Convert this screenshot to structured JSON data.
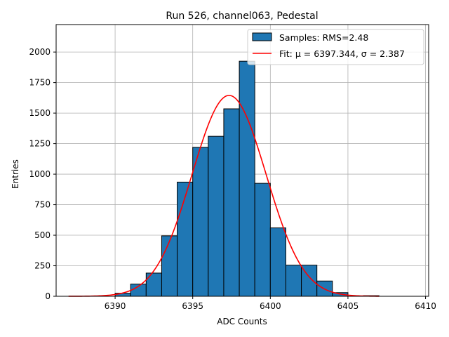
{
  "chart_data": {
    "type": "bar",
    "title": "Run 526, channel063, Pedestal",
    "xlabel": "ADC Counts",
    "ylabel": "Entries",
    "xlim": [
      6386.2,
      6410.2
    ],
    "ylim": [
      0,
      2225
    ],
    "xticks": [
      6390,
      6395,
      6400,
      6405,
      6410
    ],
    "yticks": [
      0,
      250,
      500,
      750,
      1000,
      1250,
      1500,
      1750,
      2000
    ],
    "grid": true,
    "legend_position": "top-right",
    "legend": [
      {
        "label": "Samples: RMS=2.48",
        "kind": "patch"
      },
      {
        "label": "Fit: μ = 6397.344, σ = 2.387",
        "kind": "line"
      }
    ],
    "histogram": {
      "bin_width": 1,
      "bins": [
        {
          "x": 6390,
          "count": 25
        },
        {
          "x": 6391,
          "count": 100
        },
        {
          "x": 6392,
          "count": 190
        },
        {
          "x": 6393,
          "count": 495
        },
        {
          "x": 6394,
          "count": 935
        },
        {
          "x": 6395,
          "count": 1220
        },
        {
          "x": 6396,
          "count": 1310
        },
        {
          "x": 6397,
          "count": 1535
        },
        {
          "x": 6398,
          "count": 1925
        },
        {
          "x": 6399,
          "count": 925
        },
        {
          "x": 6400,
          "count": 560
        },
        {
          "x": 6401,
          "count": 255
        },
        {
          "x": 6402,
          "count": 255
        },
        {
          "x": 6403,
          "count": 125
        },
        {
          "x": 6404,
          "count": 30
        },
        {
          "x": 6406,
          "count": 5
        }
      ]
    },
    "fit": {
      "mu": 6397.344,
      "sigma": 2.387,
      "amplitude": 1645,
      "x_range": [
        6387,
        6407
      ]
    },
    "colors": {
      "bar": "#1f77b4",
      "bar_edge": "#000000",
      "fit": "#ff0000",
      "grid": "#b0b0b0"
    }
  }
}
